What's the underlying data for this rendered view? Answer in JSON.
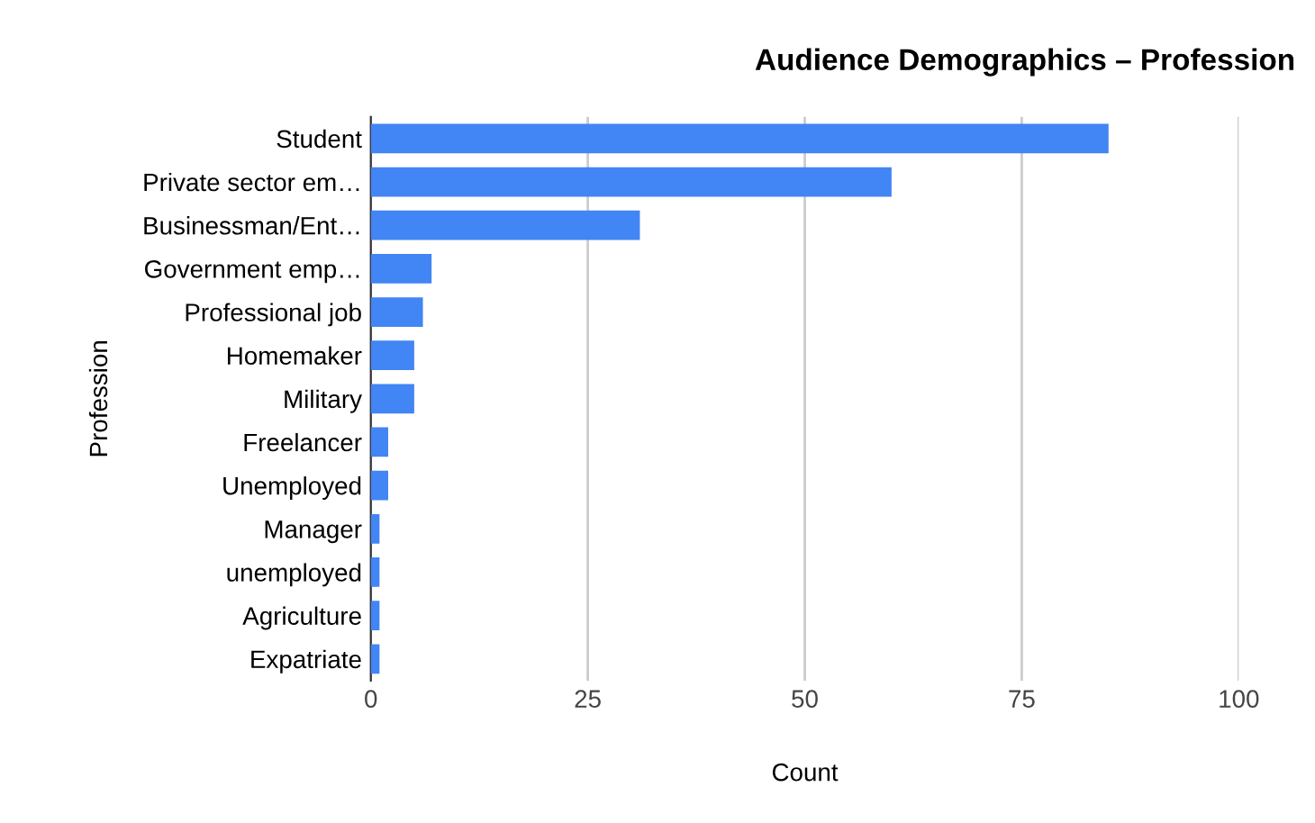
{
  "chart_data": {
    "type": "bar",
    "orientation": "horizontal",
    "title": "Audience Demographics – Profession",
    "xlabel": "Count",
    "ylabel": "Profession",
    "categories": [
      "Student",
      "Private sector em…",
      "Businessman/Ent…",
      "Government emp…",
      "Professional job",
      "Homemaker",
      "Military",
      "Freelancer",
      "Unemployed",
      "Manager",
      "unemployed",
      "Agriculture",
      "Expatriate"
    ],
    "values": [
      85,
      60,
      31,
      7,
      6,
      5,
      5,
      2,
      2,
      1,
      1,
      1,
      1
    ],
    "color": "#4285f4",
    "xlim": [
      0,
      100
    ],
    "xticks": [
      0,
      25,
      50,
      75,
      100
    ],
    "grid": "x",
    "legend": false
  }
}
